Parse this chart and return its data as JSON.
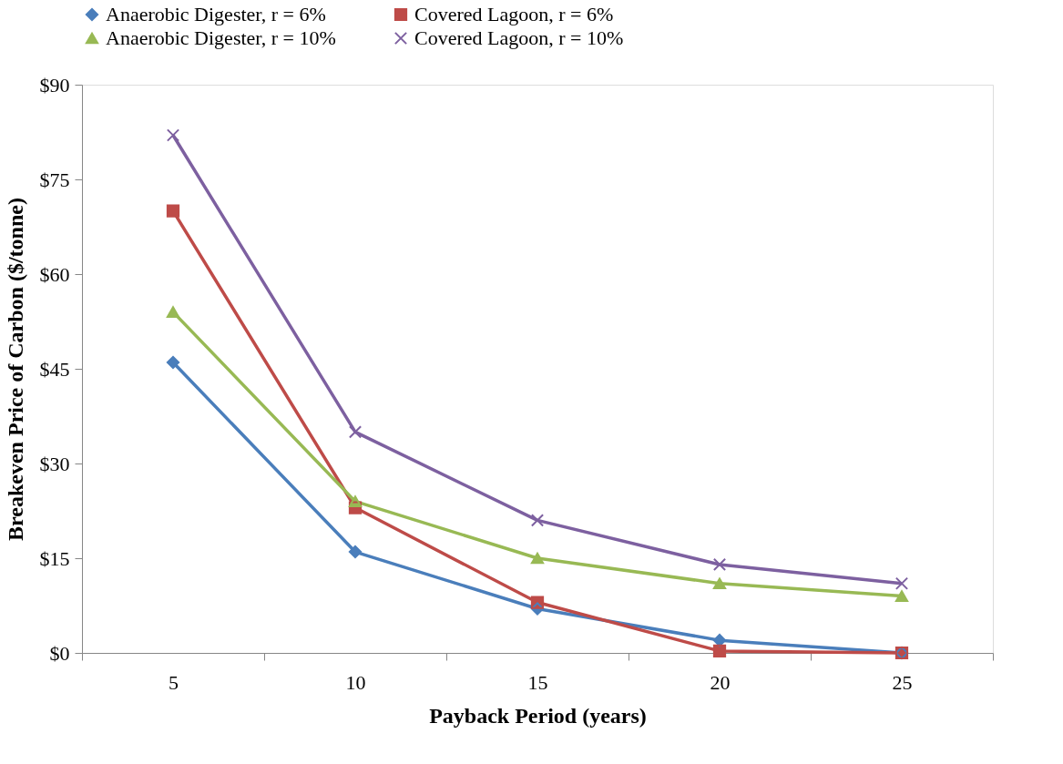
{
  "chart_data": {
    "type": "line",
    "xlabel": "Payback Period (years)",
    "ylabel": "Breakeven Price of Carbon ($/tonne)",
    "categories": [
      "5",
      "10",
      "15",
      "20",
      "25"
    ],
    "ylim": [
      0,
      90
    ],
    "yticks": [
      {
        "value": 0,
        "label": "$0"
      },
      {
        "value": 15,
        "label": "$15"
      },
      {
        "value": 30,
        "label": "$30"
      },
      {
        "value": 45,
        "label": "$45"
      },
      {
        "value": 60,
        "label": "$60"
      },
      {
        "value": 75,
        "label": "$75"
      },
      {
        "value": 90,
        "label": "$90"
      }
    ],
    "grid": false,
    "legend": "top",
    "line_style": "solid",
    "series": [
      {
        "name": "Anaerobic Digester, r = 6%",
        "color": "#4a7ebb",
        "marker": "diamond",
        "values": [
          46,
          16,
          7,
          2,
          0
        ]
      },
      {
        "name": "Covered Lagoon, r = 6%",
        "color": "#be4b48",
        "marker": "square",
        "values": [
          70,
          23,
          8,
          0.3,
          0
        ]
      },
      {
        "name": "Anaerobic Digester, r = 10%",
        "color": "#98b954",
        "marker": "triangle",
        "values": [
          54,
          24,
          15,
          11,
          9
        ]
      },
      {
        "name": "Covered Lagoon, r = 10%",
        "color": "#7d60a0",
        "marker": "cross",
        "values": [
          82,
          35,
          21,
          14,
          11
        ]
      }
    ]
  }
}
